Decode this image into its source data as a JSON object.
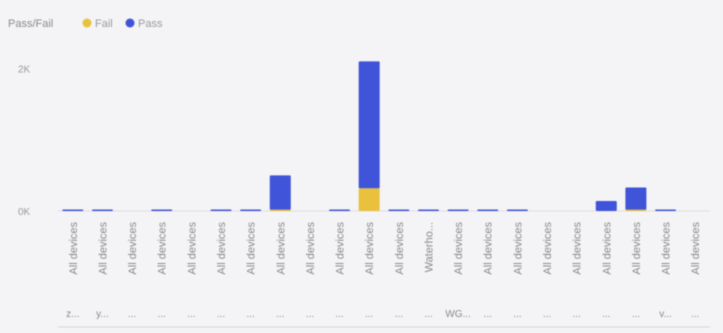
{
  "chart_data": {
    "type": "bar",
    "stacked": true,
    "legend": {
      "title": "Pass/Fail",
      "placement": "top-left",
      "items": [
        {
          "name": "Fail",
          "color": "#e9c13c"
        },
        {
          "name": "Pass",
          "color": "#3f54d8"
        }
      ]
    },
    "y_ticks": [
      {
        "value": 0,
        "label": "0K"
      },
      {
        "value": 2000,
        "label": "2K"
      }
    ],
    "ylim": [
      0,
      2400
    ],
    "categories": [
      "All devices",
      "All devices",
      "All devices",
      "All devices",
      "All devices",
      "All devices",
      "All devices",
      "All devices",
      "All devices",
      "All devices",
      "All devices",
      "All devices",
      "Waterho...",
      "All devices",
      "All devices",
      "All devices",
      "All devices",
      "All devices",
      "All devices",
      "All devices",
      "All devices",
      "All devices"
    ],
    "group_labels": [
      "z...",
      "y...",
      "...",
      "...",
      "...",
      "...",
      "...",
      "...",
      "...",
      "...",
      "...",
      "...",
      "...",
      "WG...",
      "...",
      "...",
      "...",
      "...",
      "...",
      "...",
      "v...",
      "..."
    ],
    "series": [
      {
        "name": "Fail",
        "color": "#e9c13c",
        "values": [
          0,
          0,
          0,
          0,
          0,
          0,
          0,
          20,
          0,
          0,
          320,
          0,
          0,
          0,
          0,
          0,
          0,
          0,
          0,
          20,
          0,
          0
        ]
      },
      {
        "name": "Pass",
        "color": "#3f54d8",
        "values": [
          5,
          5,
          0,
          5,
          0,
          5,
          5,
          480,
          0,
          5,
          1780,
          20,
          5,
          5,
          5,
          5,
          0,
          0,
          140,
          310,
          10,
          0
        ]
      }
    ]
  }
}
